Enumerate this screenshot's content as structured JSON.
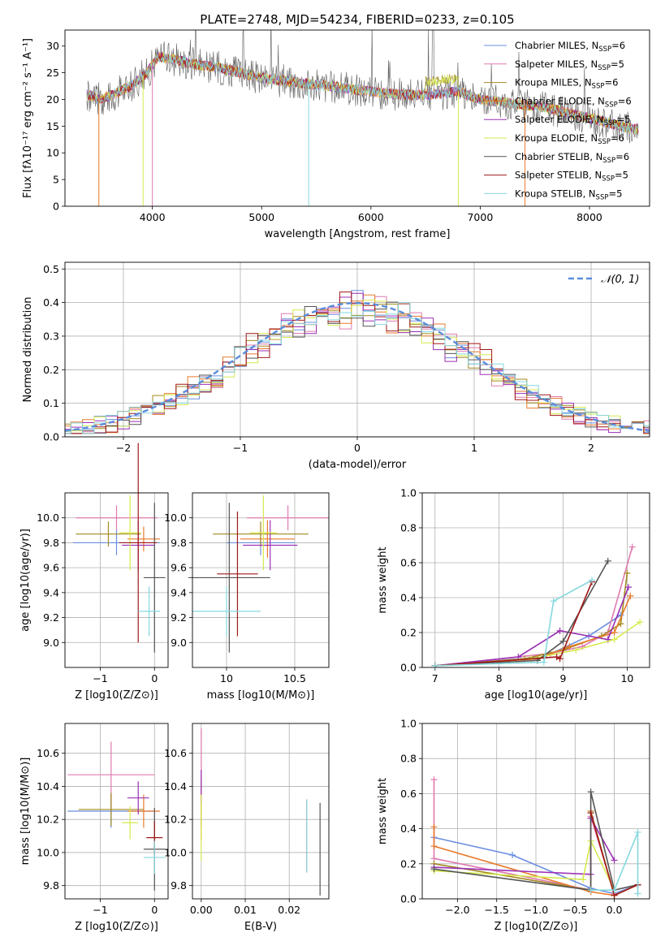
{
  "colors": [
    "#6a8de0",
    "#e07ab0",
    "#a38a1f",
    "#e87a2c",
    "#9b2fb5",
    "#d6ea4e",
    "#555555",
    "#a01818",
    "#86d8de"
  ],
  "chart_data": [
    {
      "id": "spectrum",
      "type": "line",
      "title": "PLATE=2748, MJD=54234, FIBERID=0233, z=0.105",
      "xlabel": "wavelength [Angstrom, rest frame]",
      "ylabel": "Flux [fλ10⁻¹⁷ erg cm⁻² s⁻¹ A⁻¹]",
      "xlim": [
        3200,
        8550
      ],
      "ylim": [
        0,
        33
      ],
      "xticks": [
        4000,
        5000,
        6000,
        7000,
        8000
      ],
      "yticks": [
        0,
        5,
        10,
        15,
        20,
        25,
        30
      ],
      "continuum": {
        "x": [
          3400,
          3500,
          3650,
          3800,
          3950,
          4050,
          4200,
          4400,
          4600,
          4800,
          5000,
          5200,
          5400,
          5600,
          5800,
          6000,
          6200,
          6400,
          6600,
          6800,
          7000,
          7200,
          7400,
          7600,
          7800,
          8000,
          8200,
          8400
        ],
        "y": [
          21,
          20,
          21,
          22.5,
          25,
          28,
          27.5,
          26.5,
          26,
          25,
          24,
          23.5,
          23,
          22.5,
          22,
          21.5,
          21,
          20.8,
          21,
          21.5,
          20,
          19.5,
          19,
          18.5,
          17.5,
          16.5,
          15.5,
          14.5
        ]
      },
      "grid": false,
      "legend": {
        "placement": "top-right",
        "entries": [
          "Chabrier MILES, N_SSP=6",
          "Salpeter MILES, N_SSP=5",
          "Kroupa MILES, N_SSP=6",
          "Chabrier ELODIE, N_SSP=6",
          "Salpeter ELODIE, N_SSP=5",
          "Kroupa ELODIE, N_SSP=6",
          "Chabrier STELIB, N_SSP=6",
          "Salpeter STELIB, N_SSP=5",
          "Kroupa STELIB, N_SSP=5"
        ]
      }
    },
    {
      "id": "residuals",
      "type": "line",
      "xlabel": "(data-model)/error",
      "ylabel": "Normed distribution",
      "xlim": [
        -2.5,
        2.5
      ],
      "ylim": [
        0,
        0.52
      ],
      "xticks": [
        -2,
        -1,
        0,
        1,
        2
      ],
      "yticks": [
        0.0,
        0.1,
        0.2,
        0.3,
        0.4,
        0.5
      ],
      "grid": true,
      "legend": {
        "placement": "top-right",
        "entries": [
          "𝒩(0, 1)"
        ]
      }
    },
    {
      "id": "age-vs-Z",
      "type": "scatter",
      "xlabel": "Z [log10(Z/Z⊙)]",
      "ylabel": "age  [log10(age/yr)]",
      "xlim": [
        -1.65,
        0.25
      ],
      "ylim": [
        8.8,
        10.2
      ],
      "xticks": [
        -1,
        0
      ],
      "yticks": [
        9.0,
        9.2,
        9.4,
        9.6,
        9.8,
        10.0
      ],
      "grid": true,
      "points": [
        {
          "x": -0.7,
          "y": 9.8,
          "xerr": 0.8,
          "yerr": 0.1
        },
        {
          "x": -0.7,
          "y": 10.0,
          "xerr": 0.75,
          "yerr": 0.1
        },
        {
          "x": -0.85,
          "y": 9.87,
          "xerr": 0.6,
          "yerr": 0.1
        },
        {
          "x": -0.2,
          "y": 9.83,
          "xerr": 0.3,
          "yerr": 0.1
        },
        {
          "x": -0.3,
          "y": 9.78,
          "xerr": 0.3,
          "yerr": 0.2
        },
        {
          "x": -0.45,
          "y": 9.88,
          "xerr": 0.2,
          "yerr": 0.3
        },
        {
          "x": 0.0,
          "y": 9.52,
          "xerr": 0.2,
          "yerr": 0.6
        },
        {
          "x": -0.3,
          "y": 9.8,
          "xerr": 0.35,
          "yerr": 0.8
        },
        {
          "x": -0.1,
          "y": 9.25,
          "xerr": 0.2,
          "yerr": 0.2
        }
      ]
    },
    {
      "id": "age-vs-mass",
      "type": "scatter",
      "xlabel": "mass [log10(M/M⊙)]",
      "ylabel": "",
      "xlim": [
        9.75,
        10.75
      ],
      "ylim": [
        8.8,
        10.2
      ],
      "xticks": [
        10.0,
        10.5
      ],
      "yticks": [
        9.0,
        9.2,
        9.4,
        9.6,
        9.8,
        10.0
      ],
      "grid": true,
      "points": [
        {
          "x": 10.25,
          "y": 9.8,
          "xerr": 0.25,
          "yerr": 0.1
        },
        {
          "x": 10.45,
          "y": 10.0,
          "xerr": 0.3,
          "yerr": 0.1
        },
        {
          "x": 10.25,
          "y": 9.87,
          "xerr": 0.35,
          "yerr": 0.1
        },
        {
          "x": 10.3,
          "y": 9.83,
          "xerr": 0.2,
          "yerr": 0.15
        },
        {
          "x": 10.32,
          "y": 9.78,
          "xerr": 0.2,
          "yerr": 0.2
        },
        {
          "x": 10.27,
          "y": 9.88,
          "xerr": 0.1,
          "yerr": 0.3
        },
        {
          "x": 10.02,
          "y": 9.52,
          "xerr": 0.3,
          "yerr": 0.6
        },
        {
          "x": 10.08,
          "y": 9.55,
          "xerr": 0.15,
          "yerr": 0.5
        },
        {
          "x": 10.0,
          "y": 9.25,
          "xerr": 0.25,
          "yerr": 0.2
        }
      ]
    },
    {
      "id": "mass-weight-vs-age",
      "type": "line",
      "xlabel": "age  [log10(age/yr)]",
      "ylabel": "mass weight",
      "xlim": [
        6.8,
        10.35
      ],
      "ylim": [
        0,
        1
      ],
      "xticks": [
        7,
        8,
        9,
        10
      ],
      "yticks": [
        0.0,
        0.2,
        0.4,
        0.6,
        0.8,
        1.0
      ],
      "grid": true,
      "series": [
        {
          "x": [
            7.0,
            8.7,
            9.4,
            9.9
          ],
          "y": [
            0.01,
            0.06,
            0.18,
            0.3
          ]
        },
        {
          "x": [
            7.0,
            8.8,
            9.3,
            9.7,
            10.08
          ],
          "y": [
            0.01,
            0.08,
            0.12,
            0.2,
            0.69
          ]
        },
        {
          "x": [
            7.0,
            8.4,
            9.0,
            9.6,
            9.9,
            10.0
          ],
          "y": [
            0.01,
            0.05,
            0.1,
            0.18,
            0.25,
            0.54
          ]
        },
        {
          "x": [
            7.0,
            8.6,
            9.1,
            9.8,
            10.05
          ],
          "y": [
            0.01,
            0.05,
            0.12,
            0.2,
            0.41
          ]
        },
        {
          "x": [
            7.0,
            8.3,
            8.95,
            9.7,
            10.02
          ],
          "y": [
            0.01,
            0.06,
            0.21,
            0.16,
            0.46
          ]
        },
        {
          "x": [
            7.0,
            8.5,
            9.2,
            9.8,
            10.2
          ],
          "y": [
            0.01,
            0.05,
            0.1,
            0.16,
            0.26
          ]
        },
        {
          "x": [
            7.0,
            8.6,
            9.0,
            9.7
          ],
          "y": [
            0.01,
            0.04,
            0.15,
            0.61
          ]
        },
        {
          "x": [
            7.0,
            8.9,
            8.95,
            9.45
          ],
          "y": [
            0.01,
            0.06,
            0.05,
            0.49
          ]
        },
        {
          "x": [
            7.0,
            8.7,
            8.85,
            9.45
          ],
          "y": [
            0.01,
            0.03,
            0.38,
            0.5
          ]
        }
      ]
    },
    {
      "id": "mass-vs-Z",
      "type": "scatter",
      "xlabel": "Z [log10(Z/Z⊙)]",
      "ylabel": "mass [log10(M/M⊙)]",
      "xlim": [
        -1.65,
        0.25
      ],
      "ylim": [
        9.72,
        10.78
      ],
      "xticks": [
        -1,
        0
      ],
      "yticks": [
        9.8,
        10.0,
        10.2,
        10.4,
        10.6
      ],
      "grid": true,
      "points": [
        {
          "x": -0.8,
          "y": 10.25,
          "xerr": 0.8,
          "yerr": 0.1
        },
        {
          "x": -0.8,
          "y": 10.47,
          "xerr": 0.8,
          "yerr": 0.2
        },
        {
          "x": -0.8,
          "y": 10.26,
          "xerr": 0.6,
          "yerr": 0.1
        },
        {
          "x": -0.2,
          "y": 10.25,
          "xerr": 0.3,
          "yerr": 0.1
        },
        {
          "x": -0.3,
          "y": 10.33,
          "xerr": 0.2,
          "yerr": 0.1
        },
        {
          "x": -0.45,
          "y": 10.18,
          "xerr": 0.15,
          "yerr": 0.1
        },
        {
          "x": 0.0,
          "y": 10.02,
          "xerr": 0.2,
          "yerr": 0.25
        },
        {
          "x": 0.0,
          "y": 10.09,
          "xerr": 0.15,
          "yerr": 0.1
        },
        {
          "x": 0.0,
          "y": 9.97,
          "xerr": 0.2,
          "yerr": 0.1
        }
      ]
    },
    {
      "id": "mass-vs-ebv",
      "type": "scatter",
      "xlabel": "E(B-V)",
      "ylabel": "",
      "xlim": [
        -0.002,
        0.029
      ],
      "ylim": [
        9.72,
        10.78
      ],
      "xticks": [
        0.0,
        0.01,
        0.02
      ],
      "xticklabels": [
        "0.00",
        "0.01",
        "0.02"
      ],
      "yticks": [
        9.8,
        10.0,
        10.2,
        10.4,
        10.6
      ],
      "grid": true,
      "points": [
        {
          "x": 0.0,
          "y": 10.25,
          "xerr": 0.0,
          "yerr": 0.1
        },
        {
          "x": 0.0,
          "y": 10.5,
          "xerr": 0.0,
          "yerr": 0.25
        },
        {
          "x": 0.0,
          "y": 10.3,
          "xerr": 0.0,
          "yerr": 0.15
        },
        {
          "x": 0.0,
          "y": 10.22,
          "xerr": 0.0,
          "yerr": 0.15
        },
        {
          "x": 0.0,
          "y": 10.4,
          "xerr": 0.0,
          "yerr": 0.1
        },
        {
          "x": 0.0,
          "y": 10.15,
          "xerr": 0.0,
          "yerr": 0.2
        },
        {
          "x": 0.027,
          "y": 10.02,
          "xerr": 0.0,
          "yerr": 0.28
        },
        {
          "x": 0.024,
          "y": 10.1,
          "xerr": 0.0,
          "yerr": 0.22
        },
        {
          "x": 0.024,
          "y": 10.1,
          "xerr": 0.0,
          "yerr": 0.22
        }
      ]
    },
    {
      "id": "mass-weight-vs-Z",
      "type": "line",
      "xlabel": "Z [log10(Z/Z⊙)]",
      "ylabel": "mass weight",
      "xlim": [
        -2.45,
        0.45
      ],
      "ylim": [
        0,
        1
      ],
      "xticks": [
        -2.0,
        -1.5,
        -1.0,
        -0.5,
        0.0
      ],
      "xticklabels": [
        "−2.0",
        "−1.5",
        "−1.0",
        "−0.5",
        "0.0"
      ],
      "yticks": [
        0.0,
        0.2,
        0.4,
        0.6,
        0.8,
        1.0
      ],
      "grid": true,
      "series": [
        {
          "x": [
            -2.3,
            -1.3,
            -0.3,
            0.0,
            0.3
          ],
          "y": [
            0.35,
            0.25,
            0.06,
            0.03,
            0.08
          ]
        },
        {
          "x": [
            -2.3,
            -2.3,
            -0.3,
            -0.3,
            0.0
          ],
          "y": [
            0.68,
            0.23,
            0.05,
            0.47,
            0.03
          ]
        },
        {
          "x": [
            -2.3,
            -0.3,
            -0.3,
            0.0,
            0.3
          ],
          "y": [
            0.2,
            0.05,
            0.5,
            0.02,
            0.08
          ]
        },
        {
          "x": [
            -2.3,
            -2.3,
            -0.3,
            0.0,
            0.3
          ],
          "y": [
            0.41,
            0.3,
            0.04,
            0.02,
            0.08
          ]
        },
        {
          "x": [
            -2.3,
            -0.3,
            -0.3,
            0.0
          ],
          "y": [
            0.18,
            0.14,
            0.46,
            0.22
          ]
        },
        {
          "x": [
            -2.3,
            -0.4,
            -0.3,
            0.0
          ],
          "y": [
            0.16,
            0.11,
            0.33,
            0.05
          ]
        },
        {
          "x": [
            -2.3,
            -0.3,
            -0.3,
            0.0,
            0.3
          ],
          "y": [
            0.17,
            0.05,
            0.61,
            0.05,
            0.08
          ]
        },
        {
          "x": [
            -0.3,
            0.0,
            0.3
          ],
          "y": [
            0.49,
            0.02,
            0.08
          ]
        },
        {
          "x": [
            -0.3,
            0.0,
            0.3,
            0.3
          ],
          "y": [
            0.05,
            0.05,
            0.38,
            0.03
          ]
        }
      ]
    }
  ]
}
